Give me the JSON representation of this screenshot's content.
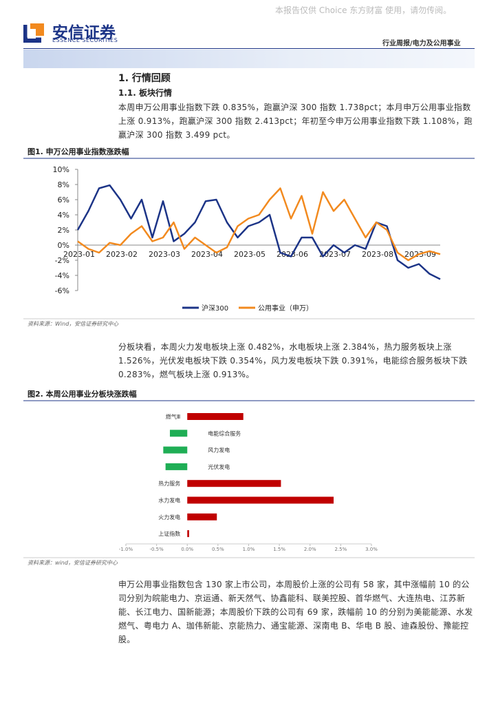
{
  "header": {
    "watermark": "本报告仅供 Choice 东方财富 使用，请勿传阅。",
    "logo": "安信证券",
    "logo_en": "ESSENCE SECURITIES",
    "report_type": "行业周报/电力及公用事业"
  },
  "sections": [
    "1. 行情回顾",
    "1.1. 板块行情"
  ],
  "paragraphs": [
    "本周申万公用事业指数下跌 0.835%，跑赢沪深 300 指数 1.738pct；本月申万公用事业指数上涨 0.913%，跑赢沪深 300 指数 2.413pct；年初至今申万公用事业指数下跌 1.108%，跑赢沪深 300 指数 3.499 pct。",
    "分板块看，本周火力发电板块上涨 0.482%，水电板块上涨 2.384%，热力服务板块上涨 1.526%，光伏发电板块下跌 0.354%，风力发电板块下跌 0.391%，电能综合服务板块下跌 0.283%，燃气板块上涨 0.913%。",
    "申万公用事业指数包含 130 家上市公司，本周股价上涨的公司有 58 家，其中涨幅前 10 的公司分别为皖能电力、京运通、新天然气、协鑫能科、联美控股、首华燃气、大连热电、江苏新能、长江电力、国新能源；本周股价下跌的公司有 69 家，跌幅前 10 的分别为美能能源、水发燃气、粤电力 A、珈伟新能、京能热力、通宝能源、深南电 B、华电 B 股、迪森股份、豫能控股。"
  ],
  "chart_data": [
    {
      "type": "line",
      "title": "图1. 申万公用事业指数涨跌幅",
      "source": "资料来源：Wind，安信证券研究中心",
      "categories": [
        "2023-01",
        null,
        null,
        null,
        "2023-02",
        null,
        null,
        null,
        "2023-03",
        null,
        null,
        null,
        "2023-04",
        null,
        null,
        null,
        "2023-05",
        null,
        null,
        null,
        "2023-06",
        null,
        null,
        null,
        "2023-07",
        null,
        null,
        null,
        "2023-08",
        null,
        null,
        null,
        "2023-09",
        null,
        null
      ],
      "series": [
        {
          "name": "沪深300",
          "color": "#1c3487",
          "values": [
            2,
            4.5,
            7.5,
            7.9,
            6,
            3.5,
            6,
            1,
            5.8,
            0.5,
            1.5,
            3,
            5.8,
            6,
            3,
            1,
            2.5,
            3,
            4,
            -1,
            -1.5,
            1,
            1,
            -1.5,
            0,
            -1,
            0,
            -0.5,
            3,
            2.5,
            -2,
            -3,
            -2.5,
            -3.8,
            -4.5
          ]
        },
        {
          "name": "公用事业（申万）",
          "color": "#f28a1f",
          "values": [
            0.5,
            -0.5,
            -1,
            0.3,
            0,
            1.5,
            2.5,
            0.5,
            1,
            3,
            -0.5,
            1,
            0,
            -1,
            -0.3,
            2.5,
            3.5,
            4,
            6,
            7.5,
            3.5,
            6.5,
            1.5,
            7,
            4.5,
            6,
            3.5,
            1,
            3,
            2,
            -1,
            -2,
            -1.2,
            -0.8,
            -1.2
          ]
        }
      ],
      "ylim": [
        -6,
        10
      ],
      "yticks": [
        {
          "value": 10,
          "label": "10%"
        },
        {
          "value": 8,
          "label": "8%"
        },
        {
          "value": 6,
          "label": "6%"
        },
        {
          "value": 4,
          "label": "4%"
        },
        {
          "value": 2,
          "label": "2%"
        },
        {
          "value": 0,
          "label": "0%"
        },
        {
          "value": -2,
          "label": "-2%"
        },
        {
          "value": -4,
          "label": "-4%"
        },
        {
          "value": -6,
          "label": "-6%"
        }
      ],
      "legend": "bottom"
    },
    {
      "type": "hbar",
      "title": "图2. 本周公用事业分板块涨跌幅",
      "source": "资料来源：wind，安信证券研究中心",
      "categories": [
        "燃气Ⅲ",
        "电能综合服务",
        "风力发电",
        "光伏发电",
        "热力服务",
        "水力发电",
        "火力发电",
        "上证指数"
      ],
      "values": [
        0.913,
        -0.283,
        -0.391,
        -0.354,
        1.526,
        2.384,
        0.482,
        0.03
      ],
      "colors": {
        "positive": "#c00000",
        "negative": "#1fae55"
      },
      "xlim": [
        -1,
        3
      ],
      "xticks": [
        {
          "value": -1,
          "label": "-1.0%"
        },
        {
          "value": -0.5,
          "label": "-0.5%"
        },
        {
          "value": 0,
          "label": "0.0%"
        },
        {
          "value": 0.5,
          "label": "0.5%"
        },
        {
          "value": 1,
          "label": "1.0%"
        },
        {
          "value": 1.5,
          "label": "1.5%"
        },
        {
          "value": 2,
          "label": "2.0%"
        },
        {
          "value": 2.5,
          "label": "2.5%"
        },
        {
          "value": 3,
          "label": "3.0%"
        }
      ]
    }
  ]
}
